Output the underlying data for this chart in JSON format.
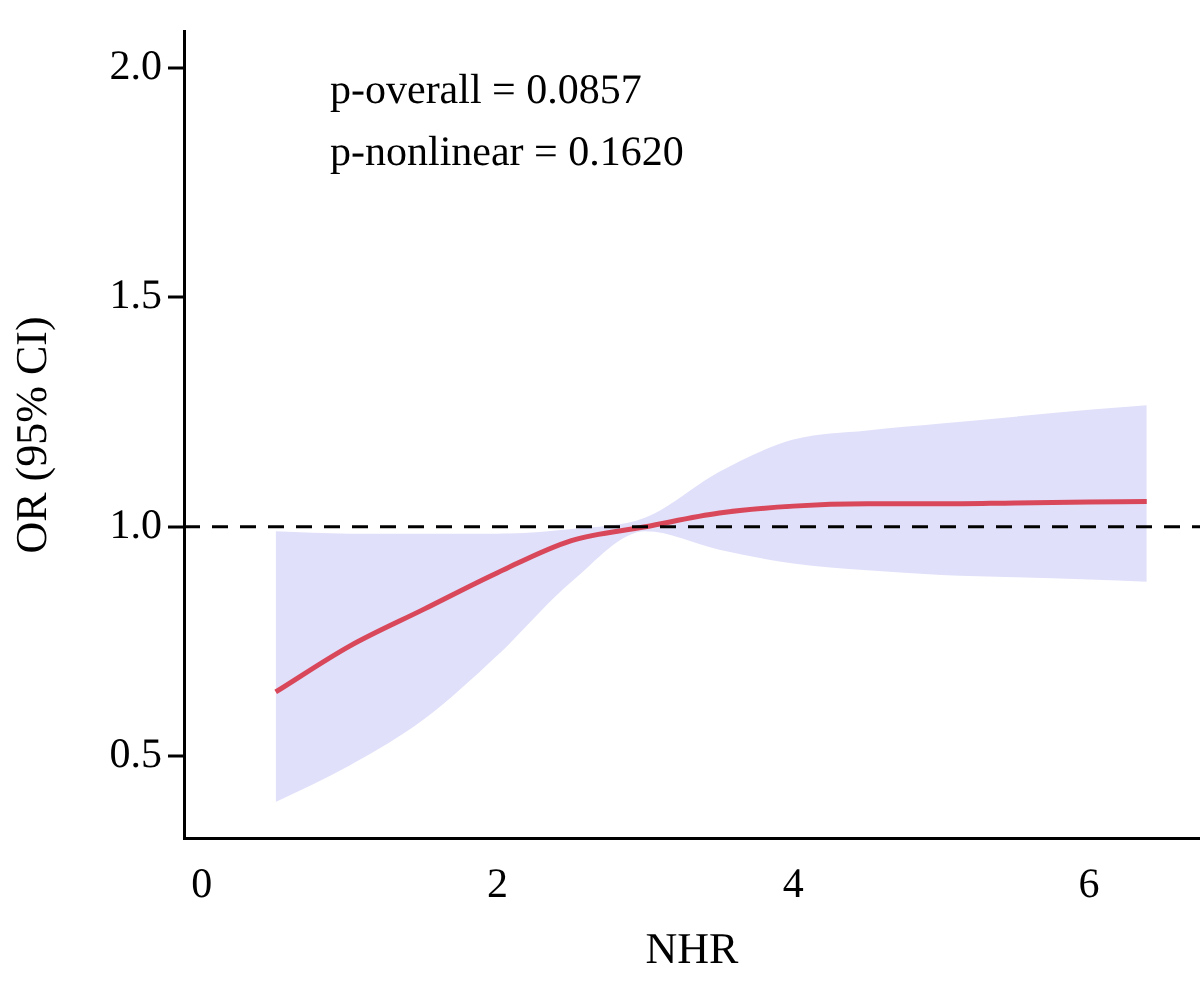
{
  "chart_data": {
    "type": "line",
    "xlabel": "NHR",
    "ylabel": "OR (95% CI)",
    "annotations": [
      "p-overall = 0.0857",
      "p-nonlinear = 0.1620"
    ],
    "series": [
      {
        "color": "#d9475a",
        "x": [
          0.5,
          1.0,
          1.5,
          2.0,
          2.5,
          3.0,
          3.5,
          4.0,
          4.5,
          5.0,
          5.5,
          6.0,
          6.39
        ],
        "values": [
          0.64,
          0.74,
          0.82,
          0.9,
          0.97,
          1.0,
          1.03,
          1.045,
          1.05,
          1.05,
          1.052,
          1.054,
          1.055
        ],
        "lower": [
          0.4,
          0.48,
          0.58,
          0.72,
          0.88,
          0.99,
          0.95,
          0.92,
          0.905,
          0.895,
          0.89,
          0.885,
          0.88
        ],
        "upper": [
          0.99,
          0.985,
          0.985,
          0.985,
          0.995,
          1.02,
          1.12,
          1.19,
          1.21,
          1.225,
          1.24,
          1.255,
          1.265
        ]
      }
    ],
    "xlim": [
      -0.12,
      6.75
    ],
    "xticks": [
      0,
      2,
      4,
      6
    ],
    "ylim": [
      0.32,
      2.08
    ],
    "yticks": [
      0.5,
      {
        "value": 1,
        "label": "1.0"
      },
      1.5,
      {
        "value": 2,
        "label": "2.0"
      }
    ],
    "ref_lines": [
      {
        "axis": "y",
        "value": 1.0,
        "color": "#000000",
        "line_style": "dashed"
      }
    ],
    "grid": false,
    "legend": false,
    "marker": "none",
    "line_style": "solid"
  }
}
